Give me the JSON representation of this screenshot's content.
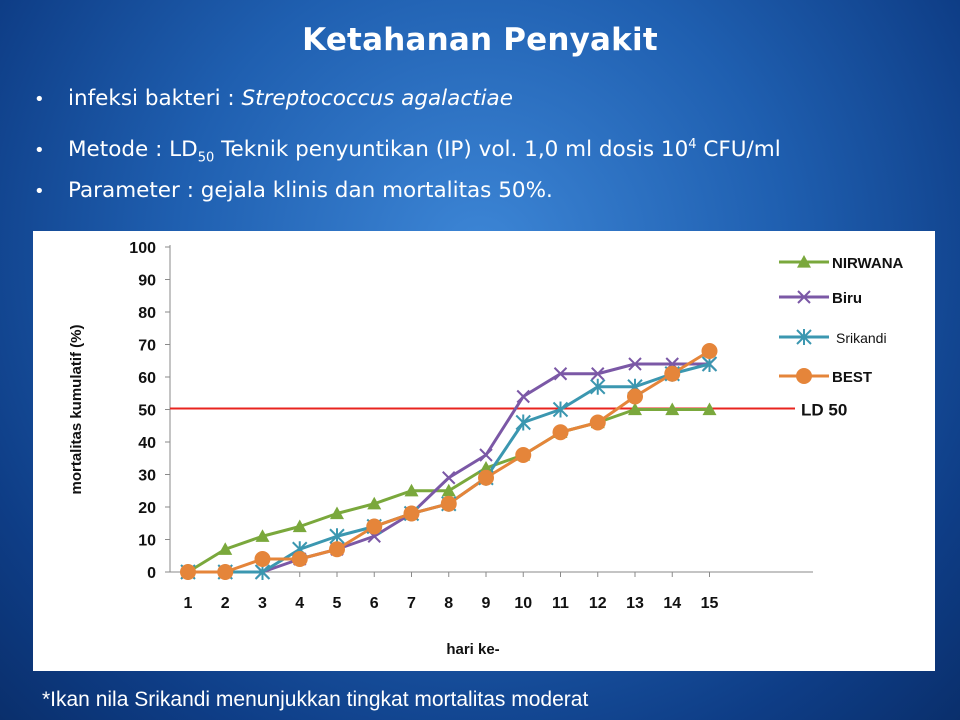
{
  "slide": {
    "title": "Ketahanan Penyakit",
    "bullets": {
      "b1_prefix": "infeksi bakteri : ",
      "b1_italic": "Streptococcus agalactiae",
      "b2_prefix": "Metode : LD",
      "b2_sub": "50",
      "b2_mid": " Teknik penyuntikan (IP) vol. 1,0 ml dosis 10",
      "b2_sup": "4",
      "b2_suffix": " CFU/ml",
      "b3": "Parameter : gejala klinis dan mortalitas  50%."
    },
    "bullet_glyph": "•",
    "footnote": "*Ikan nila Srikandi menunjukkan tingkat mortalitas moderat"
  },
  "chart_data": {
    "type": "line",
    "xlabel": "hari ke-",
    "ylabel": "mortalitas kumulatif (%)",
    "x": [
      1,
      2,
      3,
      4,
      5,
      6,
      7,
      8,
      9,
      10,
      11,
      12,
      13,
      14,
      15
    ],
    "ylim": [
      0,
      100
    ],
    "yticks": [
      0,
      10,
      20,
      30,
      40,
      50,
      60,
      70,
      80,
      90,
      100
    ],
    "grid": false,
    "legend_position": "right",
    "series": [
      {
        "name": "NIRWANA",
        "color": "#7aa83c",
        "marker": "triangle",
        "values": [
          0,
          7,
          11,
          14,
          18,
          21,
          25,
          25,
          32,
          36,
          43,
          46,
          50,
          50,
          50
        ]
      },
      {
        "name": "Biru",
        "color": "#7b58a6",
        "marker": "x",
        "values": [
          0,
          0,
          0,
          4,
          7,
          11,
          18,
          29,
          36,
          54,
          61,
          61,
          64,
          64,
          64
        ]
      },
      {
        "name": "Srikandi",
        "color": "#3b97b0",
        "marker": "star",
        "values": [
          0,
          0,
          0,
          7,
          11,
          14,
          18,
          21,
          29,
          46,
          50,
          57,
          57,
          61,
          64
        ]
      },
      {
        "name": "BEST",
        "color": "#e5853a",
        "marker": "circle",
        "values": [
          0,
          0,
          4,
          4,
          7,
          14,
          18,
          21,
          29,
          36,
          43,
          46,
          54,
          61,
          68
        ]
      }
    ],
    "reference_line": {
      "label": "LD 50",
      "value": 50,
      "color": "#e8241f"
    }
  }
}
